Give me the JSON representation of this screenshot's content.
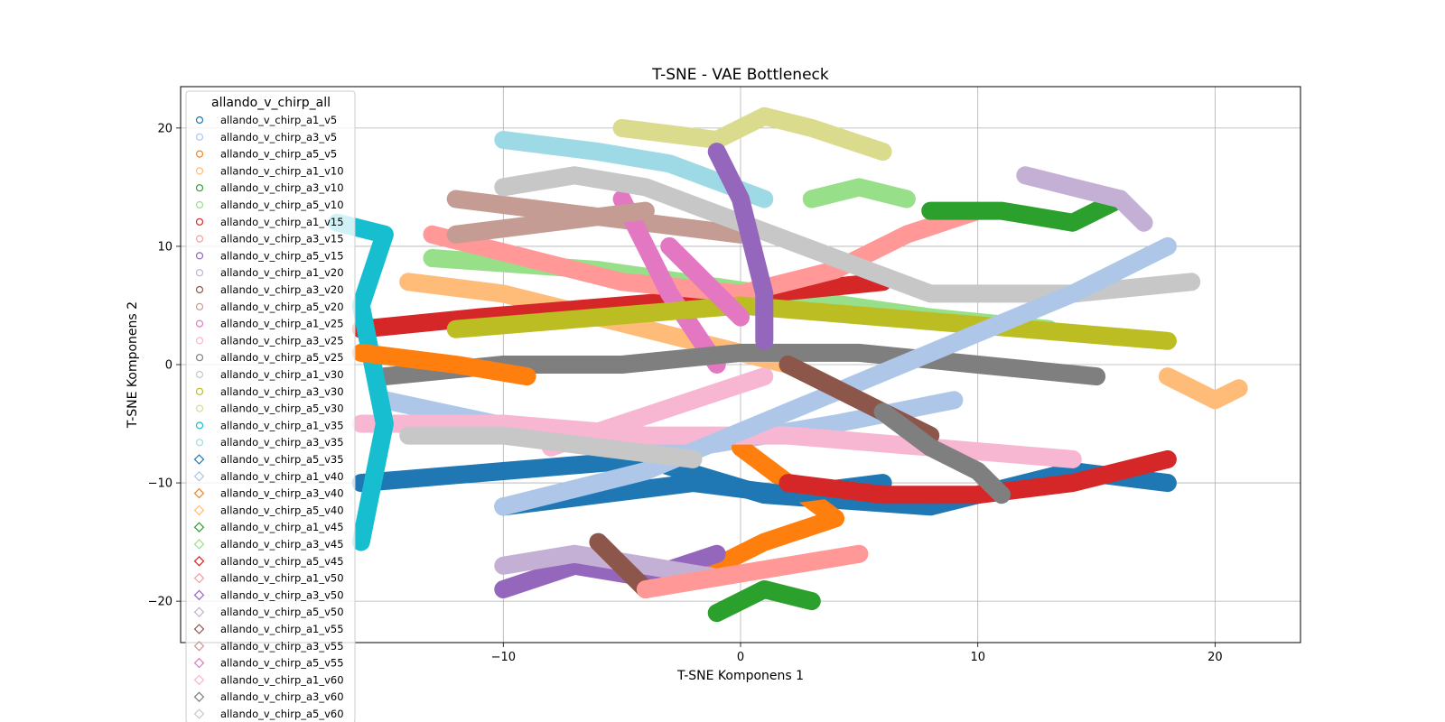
{
  "chart_data": {
    "type": "scatter",
    "title": "T-SNE - VAE Bottleneck",
    "xlabel": "T-SNE Komponens 1",
    "ylabel": "T-SNE Komponens 2",
    "xlim": [
      -23.6,
      23.6
    ],
    "ylim": [
      -23.5,
      23.5
    ],
    "xticks": [
      -10,
      0,
      10,
      20
    ],
    "yticks": [
      -20,
      -10,
      0,
      10,
      20
    ],
    "xtick_labels": [
      "−10",
      "0",
      "10",
      "20"
    ],
    "ytick_labels": [
      "−20",
      "−10",
      "0",
      "10",
      "20"
    ],
    "grid": true,
    "legend": {
      "title": "allando_v_chirp_all",
      "placement": "upper-left"
    },
    "series": [
      {
        "name": "allando_v_chirp_a1_v5",
        "color": "#1f77b4",
        "marker": "circle",
        "path": [
          [
            -16,
            -10
          ],
          [
            -10,
            -9
          ],
          [
            -4,
            -8
          ],
          [
            1,
            -11
          ],
          [
            8,
            -12
          ],
          [
            14,
            -9
          ],
          [
            18,
            -10
          ]
        ]
      },
      {
        "name": "allando_v_chirp_a3_v5",
        "color": "#aec7e8",
        "marker": "circle",
        "path": [
          [
            -15,
            -3
          ],
          [
            -8,
            -6
          ],
          [
            -2,
            -7
          ],
          [
            4,
            -5
          ],
          [
            9,
            -3
          ]
        ]
      },
      {
        "name": "allando_v_chirp_a5_v5",
        "color": "#ff7f0e",
        "marker": "circle",
        "path": [
          [
            -1,
            -17
          ],
          [
            1,
            -15
          ],
          [
            4,
            -13
          ],
          [
            2,
            -10
          ],
          [
            0,
            -7
          ]
        ]
      },
      {
        "name": "allando_v_chirp_a1_v10",
        "color": "#ffbb78",
        "marker": "circle",
        "path": [
          [
            -14,
            7
          ],
          [
            -10,
            6
          ],
          [
            -6,
            4
          ],
          [
            -2,
            2
          ],
          [
            2,
            0
          ]
        ]
      },
      {
        "name": "allando_v_chirp_a3_v10",
        "color": "#2ca02c",
        "marker": "circle",
        "path": [
          [
            -1,
            -21
          ],
          [
            1,
            -19
          ],
          [
            3,
            -20
          ]
        ]
      },
      {
        "name": "allando_v_chirp_a5_v10",
        "color": "#98df8a",
        "marker": "circle",
        "path": [
          [
            -13,
            9
          ],
          [
            -6,
            8
          ],
          [
            1,
            6
          ],
          [
            8,
            4
          ],
          [
            13,
            3
          ]
        ]
      },
      {
        "name": "allando_v_chirp_a1_v15",
        "color": "#d62728",
        "marker": "circle",
        "path": [
          [
            -16,
            3
          ],
          [
            -11,
            4
          ],
          [
            -5,
            5
          ],
          [
            1,
            6
          ],
          [
            6,
            7
          ]
        ]
      },
      {
        "name": "allando_v_chirp_a3_v15",
        "color": "#ff9896",
        "marker": "circle",
        "path": [
          [
            -13,
            11
          ],
          [
            -9,
            9
          ],
          [
            -5,
            7
          ],
          [
            0,
            6
          ],
          [
            4,
            8
          ],
          [
            7,
            11
          ],
          [
            10,
            13
          ]
        ]
      },
      {
        "name": "allando_v_chirp_a5_v15",
        "color": "#9467bd",
        "marker": "circle",
        "path": [
          [
            -10,
            -19
          ],
          [
            -7,
            -17
          ],
          [
            -4,
            -18
          ],
          [
            -1,
            -16
          ]
        ]
      },
      {
        "name": "allando_v_chirp_a1_v20",
        "color": "#c5b0d5",
        "marker": "circle",
        "path": [
          [
            -10,
            -17
          ],
          [
            -7,
            -16
          ],
          [
            -4,
            -17
          ],
          [
            -1,
            -18
          ]
        ]
      },
      {
        "name": "allando_v_chirp_a3_v20",
        "color": "#8c564b",
        "marker": "circle",
        "path": [
          [
            -6,
            -15
          ],
          [
            -5,
            -17
          ],
          [
            -4,
            -19
          ]
        ]
      },
      {
        "name": "allando_v_chirp_a5_v20",
        "color": "#c49c94",
        "marker": "circle",
        "path": [
          [
            -12,
            14
          ],
          [
            -8,
            13
          ],
          [
            -4,
            12
          ],
          [
            0,
            11
          ]
        ]
      },
      {
        "name": "allando_v_chirp_a1_v25",
        "color": "#e377c2",
        "marker": "circle",
        "path": [
          [
            -5,
            14
          ],
          [
            -4,
            10
          ],
          [
            -3,
            6
          ],
          [
            -2,
            3
          ],
          [
            -1,
            0
          ]
        ]
      },
      {
        "name": "allando_v_chirp_a3_v25",
        "color": "#f7b6d2",
        "marker": "circle",
        "path": [
          [
            -16,
            -5
          ],
          [
            -10,
            -5
          ],
          [
            -4,
            -6
          ],
          [
            2,
            -6
          ],
          [
            8,
            -7
          ],
          [
            14,
            -8
          ]
        ]
      },
      {
        "name": "allando_v_chirp_a5_v25",
        "color": "#7f7f7f",
        "marker": "circle",
        "path": [
          [
            -15,
            -1
          ],
          [
            -10,
            0
          ],
          [
            -5,
            0
          ],
          [
            0,
            1
          ],
          [
            5,
            1
          ],
          [
            10,
            0
          ],
          [
            15,
            -1
          ]
        ]
      },
      {
        "name": "allando_v_chirp_a1_v30",
        "color": "#c7c7c7",
        "marker": "circle",
        "path": [
          [
            -10,
            15
          ],
          [
            -7,
            16
          ],
          [
            -4,
            15
          ],
          [
            8,
            6
          ],
          [
            14,
            6
          ],
          [
            19,
            7
          ]
        ]
      },
      {
        "name": "allando_v_chirp_a3_v30",
        "color": "#bcbd22",
        "marker": "circle",
        "path": [
          [
            -12,
            3
          ],
          [
            -6,
            4
          ],
          [
            0,
            5
          ],
          [
            6,
            4
          ],
          [
            12,
            3
          ],
          [
            18,
            2
          ]
        ]
      },
      {
        "name": "allando_v_chirp_a5_v30",
        "color": "#dbdb8d",
        "marker": "circle",
        "path": [
          [
            -5,
            20
          ],
          [
            -1,
            19
          ],
          [
            1,
            21
          ],
          [
            3,
            20
          ],
          [
            6,
            18
          ]
        ]
      },
      {
        "name": "allando_v_chirp_a1_v35",
        "color": "#17becf",
        "marker": "circle",
        "path": [
          [
            -17,
            12
          ],
          [
            -15,
            11
          ],
          [
            -16,
            5
          ],
          [
            -15,
            -5
          ],
          [
            -16,
            -15
          ]
        ]
      },
      {
        "name": "allando_v_chirp_a3_v35",
        "color": "#9edae5",
        "marker": "circle",
        "path": [
          [
            -10,
            19
          ],
          [
            -6,
            18
          ],
          [
            -3,
            17
          ],
          [
            1,
            14
          ]
        ]
      },
      {
        "name": "allando_v_chirp_a5_v35",
        "color": "#1f77b4",
        "marker": "diamond",
        "path": [
          [
            -10,
            -12
          ],
          [
            -6,
            -11
          ],
          [
            -2,
            -10
          ],
          [
            2,
            -11
          ],
          [
            6,
            -10
          ]
        ]
      },
      {
        "name": "allando_v_chirp_a1_v40",
        "color": "#aec7e8",
        "marker": "diamond",
        "path": [
          [
            -10,
            -12
          ],
          [
            -4,
            -9
          ],
          [
            2,
            -4
          ],
          [
            8,
            1
          ],
          [
            14,
            6
          ],
          [
            18,
            10
          ]
        ]
      },
      {
        "name": "allando_v_chirp_a3_v40",
        "color": "#ff7f0e",
        "marker": "diamond",
        "path": [
          [
            -16,
            1
          ],
          [
            -12,
            0
          ],
          [
            -9,
            -1
          ]
        ]
      },
      {
        "name": "allando_v_chirp_a5_v40",
        "color": "#ffbb78",
        "marker": "diamond",
        "path": [
          [
            18,
            -1
          ],
          [
            19,
            -2
          ],
          [
            20,
            -3
          ],
          [
            21,
            -2
          ]
        ]
      },
      {
        "name": "allando_v_chirp_a1_v45",
        "color": "#2ca02c",
        "marker": "diamond",
        "path": [
          [
            8,
            13
          ],
          [
            11,
            13
          ],
          [
            14,
            12
          ],
          [
            16,
            14
          ]
        ]
      },
      {
        "name": "allando_v_chirp_a3_v45",
        "color": "#98df8a",
        "marker": "diamond",
        "path": [
          [
            3,
            14
          ],
          [
            5,
            15
          ],
          [
            7,
            14
          ]
        ]
      },
      {
        "name": "allando_v_chirp_a5_v45",
        "color": "#d62728",
        "marker": "diamond",
        "path": [
          [
            2,
            -10
          ],
          [
            6,
            -11
          ],
          [
            10,
            -11
          ],
          [
            14,
            -10
          ],
          [
            18,
            -8
          ]
        ]
      },
      {
        "name": "allando_v_chirp_a1_v50",
        "color": "#ff9896",
        "marker": "diamond",
        "path": [
          [
            -4,
            -19
          ],
          [
            -1,
            -18
          ],
          [
            2,
            -17
          ],
          [
            5,
            -16
          ]
        ]
      },
      {
        "name": "allando_v_chirp_a3_v50",
        "color": "#9467bd",
        "marker": "diamond",
        "path": [
          [
            -1,
            18
          ],
          [
            0,
            14
          ],
          [
            0.5,
            10
          ],
          [
            1,
            6
          ],
          [
            1,
            2
          ]
        ]
      },
      {
        "name": "allando_v_chirp_a5_v50",
        "color": "#c5b0d5",
        "marker": "diamond",
        "path": [
          [
            12,
            16
          ],
          [
            14,
            15
          ],
          [
            16,
            14
          ],
          [
            17,
            12
          ]
        ]
      },
      {
        "name": "allando_v_chirp_a1_v55",
        "color": "#8c564b",
        "marker": "diamond",
        "path": [
          [
            2,
            0
          ],
          [
            4,
            -2
          ],
          [
            6,
            -4
          ],
          [
            8,
            -6
          ]
        ]
      },
      {
        "name": "allando_v_chirp_a3_v55",
        "color": "#c49c94",
        "marker": "diamond",
        "path": [
          [
            -12,
            11
          ],
          [
            -8,
            12
          ],
          [
            -4,
            13
          ]
        ]
      },
      {
        "name": "allando_v_chirp_a5_v55",
        "color": "#e377c2",
        "marker": "diamond",
        "path": [
          [
            -3,
            10
          ],
          [
            -2,
            8
          ],
          [
            -1,
            6
          ],
          [
            0,
            4
          ]
        ]
      },
      {
        "name": "allando_v_chirp_a1_v60",
        "color": "#f7b6d2",
        "marker": "diamond",
        "path": [
          [
            -8,
            -7
          ],
          [
            -5,
            -5
          ],
          [
            -2,
            -3
          ],
          [
            1,
            -1
          ]
        ]
      },
      {
        "name": "allando_v_chirp_a3_v60",
        "color": "#7f7f7f",
        "marker": "diamond",
        "path": [
          [
            6,
            -4
          ],
          [
            8,
            -7
          ],
          [
            10,
            -9
          ],
          [
            11,
            -11
          ]
        ]
      },
      {
        "name": "allando_v_chirp_a5_v60",
        "color": "#c7c7c7",
        "marker": "diamond",
        "path": [
          [
            -14,
            -6
          ],
          [
            -10,
            -6
          ],
          [
            -6,
            -7
          ],
          [
            -2,
            -8
          ]
        ]
      }
    ]
  }
}
